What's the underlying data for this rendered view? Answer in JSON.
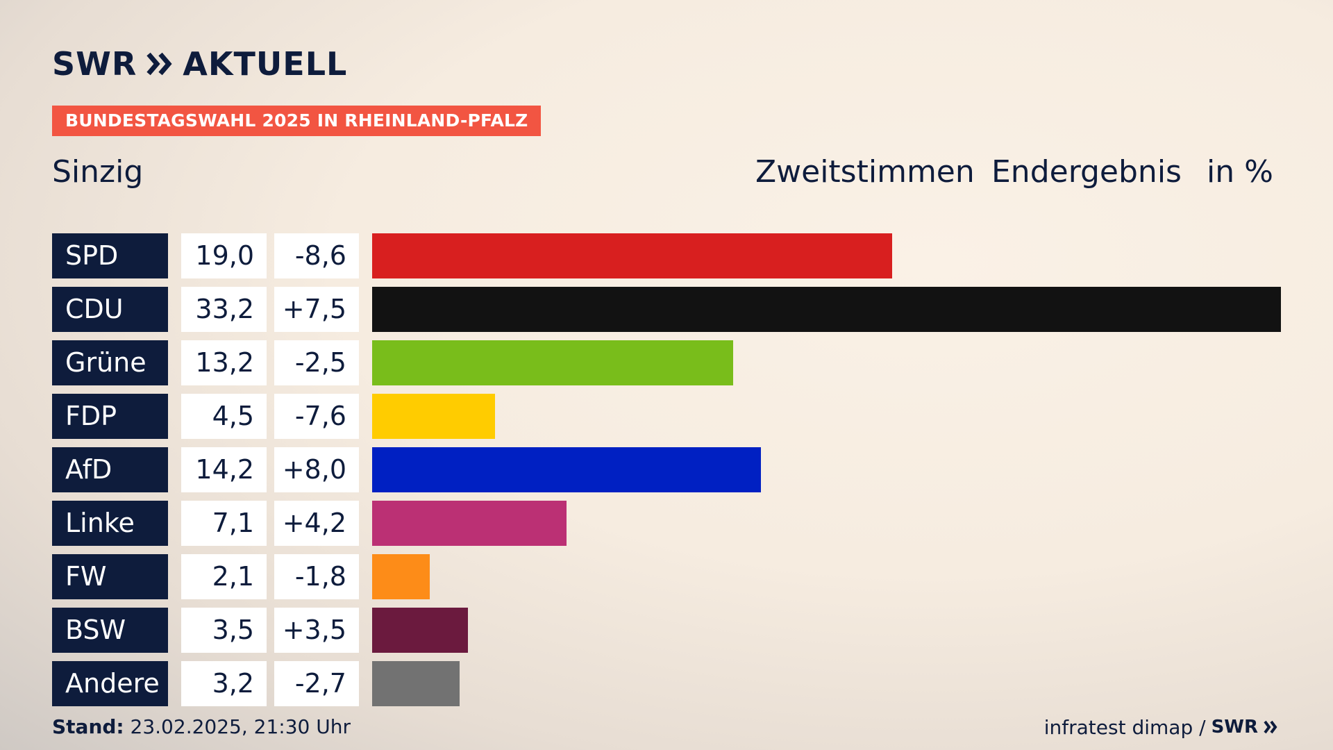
{
  "header": {
    "logo_text": "SWR",
    "logo_suffix": "AKTUELL",
    "banner": "BUNDESTAGSWAHL 2025 IN RHEINLAND-PFALZ",
    "region": "Sinzig",
    "vote_type": "Zweitstimmen",
    "result_type": "Endergebnis",
    "unit": "in %"
  },
  "footer": {
    "stand_label": "Stand:",
    "stand_value": "23.02.2025, 21:30 Uhr",
    "source": "infratest dimap /",
    "source_logo": "SWR"
  },
  "colors": {
    "navy": "#0e1c3c",
    "banner": "#f25542"
  },
  "chart_data": {
    "type": "bar",
    "orientation": "horizontal",
    "categories": [
      "SPD",
      "CDU",
      "Grüne",
      "FDP",
      "AfD",
      "Linke",
      "FW",
      "BSW",
      "Andere"
    ],
    "values": [
      19.0,
      33.2,
      13.2,
      4.5,
      14.2,
      7.1,
      2.1,
      3.5,
      3.2
    ],
    "value_labels": [
      "19,0",
      "33,2",
      "13,2",
      "4,5",
      "14,2",
      "7,1",
      "2,1",
      "3,5",
      "3,2"
    ],
    "changes": [
      -8.6,
      7.5,
      -2.5,
      -7.6,
      8.0,
      4.2,
      -1.8,
      3.5,
      -2.7
    ],
    "change_labels": [
      "-8,6",
      "+7,5",
      "-2,5",
      "-7,6",
      "+8,0",
      "+4,2",
      "-1,8",
      "+3,5",
      "-2,7"
    ],
    "bar_colors": [
      "#d81f1f",
      "#121212",
      "#79bd1b",
      "#ffcc00",
      "#0020c2",
      "#bb3074",
      "#fd8c18",
      "#6b1a3e",
      "#727272"
    ],
    "xlim": [
      0,
      33.2
    ]
  }
}
